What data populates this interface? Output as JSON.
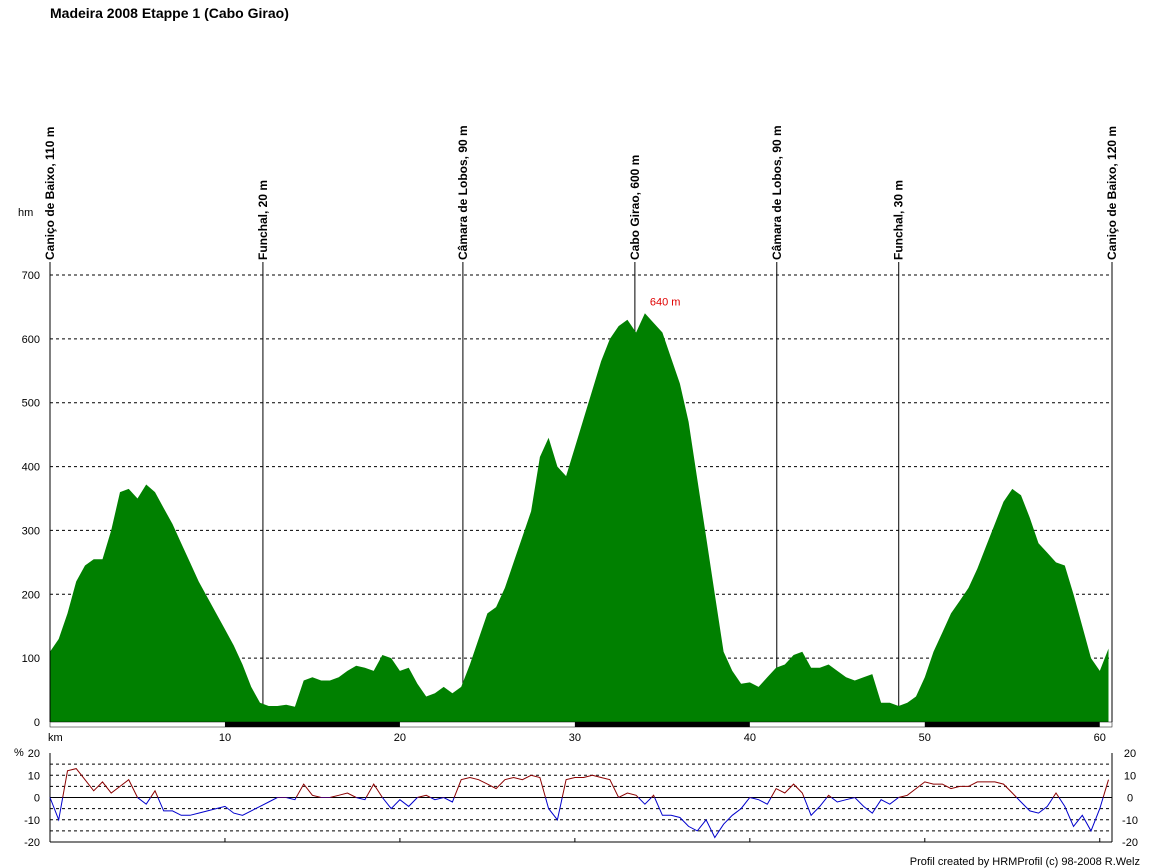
{
  "footer": "Profil created by HRMProfil (c) 98-2008 R.Welz",
  "chart_data": [
    {
      "type": "area",
      "title": "Madeira 2008 Etappe 1 (Cabo Girao)",
      "ylabel": "hm",
      "xlabel": "km",
      "color": "#008000",
      "xlim": [
        0,
        60.7
      ],
      "xticks": [
        10,
        20,
        30,
        40,
        50,
        60
      ],
      "ylim": [
        0,
        700
      ],
      "yticks": [
        0,
        100,
        200,
        300,
        400,
        500,
        600,
        700
      ],
      "grid": true,
      "x": [
        0,
        0.5,
        1,
        1.5,
        2,
        2.5,
        3,
        3.5,
        4,
        4.5,
        5,
        5.5,
        6,
        6.5,
        7,
        7.5,
        8,
        8.5,
        9,
        9.5,
        10,
        10.5,
        11,
        11.5,
        12,
        12.5,
        13,
        13.5,
        14,
        14.5,
        15,
        15.5,
        16,
        16.5,
        17,
        17.5,
        18,
        18.5,
        19,
        19.5,
        20,
        20.5,
        21,
        21.5,
        22,
        22.5,
        23,
        23.5,
        24,
        24.5,
        25,
        25.5,
        26,
        26.5,
        27,
        27.5,
        28,
        28.5,
        29,
        29.5,
        30,
        30.5,
        31,
        31.5,
        32,
        32.5,
        33,
        33.5,
        34,
        34.5,
        35,
        35.5,
        36,
        36.5,
        37,
        37.5,
        38,
        38.5,
        39,
        39.5,
        40,
        40.5,
        41,
        41.5,
        42,
        42.5,
        43,
        43.5,
        44,
        44.5,
        45,
        45.5,
        46,
        46.5,
        47,
        47.5,
        48,
        48.5,
        49,
        49.5,
        50,
        50.5,
        51,
        51.5,
        52,
        52.5,
        53,
        53.5,
        54,
        54.5,
        55,
        55.5,
        56,
        56.5,
        57,
        57.5,
        58,
        58.5,
        59,
        59.5,
        60,
        60.5
      ],
      "values": [
        110,
        130,
        170,
        220,
        245,
        255,
        255,
        300,
        360,
        365,
        350,
        372,
        360,
        335,
        310,
        280,
        250,
        220,
        195,
        170,
        145,
        120,
        90,
        55,
        30,
        25,
        25,
        27,
        24,
        65,
        70,
        65,
        65,
        70,
        80,
        88,
        85,
        80,
        105,
        100,
        80,
        85,
        60,
        40,
        45,
        55,
        45,
        55,
        90,
        130,
        170,
        180,
        210,
        250,
        290,
        330,
        415,
        445,
        400,
        385,
        430,
        475,
        520,
        565,
        600,
        620,
        630,
        610,
        640,
        625,
        610,
        570,
        530,
        470,
        380,
        290,
        200,
        110,
        80,
        60,
        62,
        55,
        70,
        85,
        90,
        105,
        110,
        85,
        85,
        90,
        80,
        70,
        65,
        70,
        75,
        30,
        30,
        25,
        30,
        40,
        70,
        110,
        140,
        170,
        190,
        210,
        240,
        275,
        310,
        345,
        365,
        355,
        320,
        280,
        265,
        250,
        245,
        200,
        150,
        100,
        80,
        115
      ],
      "waypoints": [
        {
          "label": "Caniço de Baixo, 110 m",
          "x": 0
        },
        {
          "label": "Funchal, 20 m",
          "x": 12.17
        },
        {
          "label": "Câmara de Lobos, 90 m",
          "x": 23.6
        },
        {
          "label": "Cabo Girao, 600 m",
          "x": 33.43
        },
        {
          "label": "Câmara de Lobos, 90 m",
          "x": 41.54
        },
        {
          "label": "Funchal, 30 m",
          "x": 48.51
        },
        {
          "label": "Caniço de Baixo, 120 m",
          "x": 60.7
        }
      ],
      "annotation": {
        "label": "640 m",
        "x": 34,
        "value": 640,
        "color": "#e00000"
      }
    },
    {
      "type": "line",
      "ylabel": "%",
      "color_positive": "#8b0000",
      "color_negative": "#0000cc",
      "xlim": [
        0,
        60.7
      ],
      "xticks": [
        10,
        20,
        30,
        40,
        50,
        60
      ],
      "ylim": [
        -20,
        20
      ],
      "yticks": [
        -20,
        -10,
        0,
        10,
        20
      ],
      "gridlines": [
        -15,
        -10,
        -5,
        5,
        10,
        15
      ],
      "x": [
        0,
        0.5,
        1,
        1.5,
        2,
        2.5,
        3,
        3.5,
        4,
        4.5,
        5,
        5.5,
        6,
        6.5,
        7,
        7.5,
        8,
        8.5,
        9,
        9.5,
        10,
        10.5,
        11,
        11.5,
        12,
        12.5,
        13,
        13.5,
        14,
        14.5,
        15,
        15.5,
        16,
        16.5,
        17,
        17.5,
        18,
        18.5,
        19,
        19.5,
        20,
        20.5,
        21,
        21.5,
        22,
        22.5,
        23,
        23.5,
        24,
        24.5,
        25,
        25.5,
        26,
        26.5,
        27,
        27.5,
        28,
        28.5,
        29,
        29.5,
        30,
        30.5,
        31,
        31.5,
        32,
        32.5,
        33,
        33.5,
        34,
        34.5,
        35,
        35.5,
        36,
        36.5,
        37,
        37.5,
        38,
        38.5,
        39,
        39.5,
        40,
        40.5,
        41,
        41.5,
        42,
        42.5,
        43,
        43.5,
        44,
        44.5,
        45,
        45.5,
        46,
        46.5,
        47,
        47.5,
        48,
        48.5,
        49,
        49.5,
        50,
        50.5,
        51,
        51.5,
        52,
        52.5,
        53,
        53.5,
        54,
        54.5,
        55,
        55.5,
        56,
        56.5,
        57,
        57.5,
        58,
        58.5,
        59,
        59.5,
        60,
        60.5
      ],
      "values": [
        0,
        -10,
        12,
        13,
        8,
        3,
        7,
        2,
        5,
        8,
        0,
        -3,
        3,
        -6,
        -6,
        -8,
        -8,
        -7,
        -6,
        -5,
        -4,
        -7,
        -8,
        -6,
        -4,
        -2,
        0,
        0,
        -1,
        6,
        1,
        0,
        0,
        1,
        2,
        0,
        -1,
        6,
        0,
        -5,
        -1,
        -4,
        0,
        1,
        -1,
        0,
        -2,
        8,
        9,
        8,
        6,
        4,
        8,
        9,
        8,
        10,
        9,
        -5,
        -10,
        8,
        9,
        9,
        10,
        9,
        8,
        0,
        2,
        1,
        -3,
        1,
        -8,
        -8,
        -9,
        -13,
        -15,
        -10,
        -18,
        -12,
        -8,
        -5,
        0,
        -1,
        -3,
        4,
        2,
        6,
        2,
        -8,
        -4,
        1,
        -2,
        -1,
        0,
        -4,
        -7,
        -1,
        -3,
        0,
        1,
        4,
        7,
        6,
        6,
        4,
        5,
        5,
        7,
        7,
        7,
        6,
        2,
        -2,
        -6,
        -7,
        -4,
        2,
        -4,
        -13,
        -8,
        -15,
        -5,
        8
      ]
    }
  ]
}
